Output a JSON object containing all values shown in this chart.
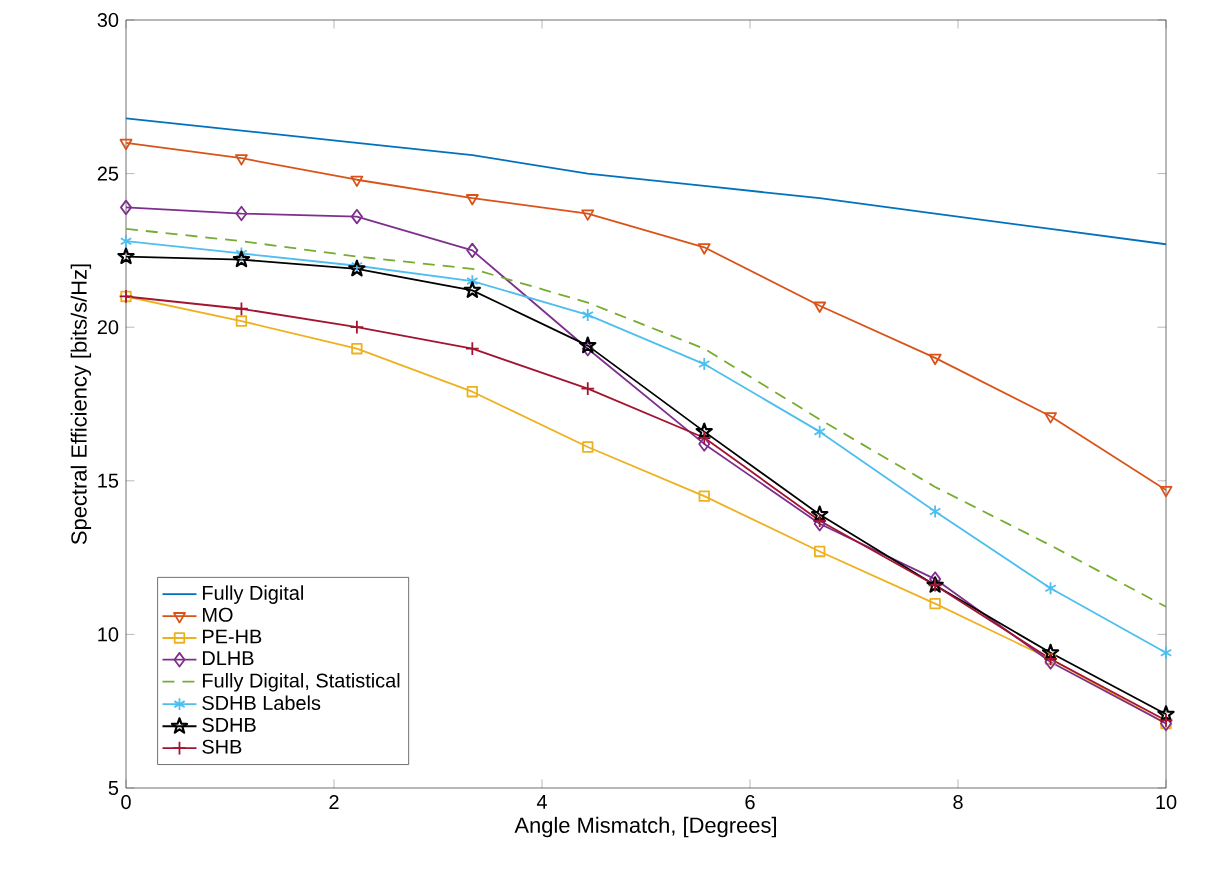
{
  "chart_data": {
    "type": "line",
    "xlabel": "Angle Mismatch, [Degrees]",
    "ylabel": "Spectral Efficiency [bits/s/Hz]",
    "x": [
      0,
      1.11,
      2.22,
      3.33,
      4.44,
      5.56,
      6.67,
      7.78,
      8.89,
      10
    ],
    "series": [
      {
        "name": "Fully Digital",
        "color": "#0072bd",
        "marker": "none",
        "line_style": "solid",
        "values": [
          26.8,
          26.4,
          26.0,
          25.6,
          25.0,
          24.6,
          24.2,
          23.7,
          23.2,
          22.7
        ]
      },
      {
        "name": "MO",
        "color": "#d95319",
        "marker": "triangle",
        "line_style": "solid",
        "values": [
          26.0,
          25.5,
          24.8,
          24.2,
          23.7,
          22.6,
          20.7,
          19.0,
          17.1,
          14.7
        ]
      },
      {
        "name": "PE-HB",
        "color": "#edb120",
        "marker": "square",
        "line_style": "solid",
        "values": [
          21.0,
          20.2,
          19.3,
          17.9,
          16.1,
          14.5,
          12.7,
          11.0,
          9.2,
          7.1
        ]
      },
      {
        "name": "DLHB",
        "color": "#7e2f8e",
        "marker": "diamond",
        "line_style": "solid",
        "values": [
          23.9,
          23.7,
          23.6,
          22.5,
          19.3,
          16.2,
          13.6,
          11.8,
          9.1,
          7.1
        ]
      },
      {
        "name": "Fully Digital, Statistical",
        "color": "#77ac30",
        "marker": "none",
        "line_style": "dashed",
        "values": [
          23.2,
          22.8,
          22.3,
          21.9,
          20.8,
          19.3,
          17.0,
          14.8,
          12.9,
          10.9
        ]
      },
      {
        "name": "SDHB Labels",
        "color": "#4dbeee",
        "marker": "cross",
        "line_style": "solid",
        "values": [
          22.8,
          22.4,
          22.0,
          21.5,
          20.4,
          18.8,
          16.6,
          14.0,
          11.5,
          9.4
        ]
      },
      {
        "name": "SDHB",
        "color": "#000000",
        "marker": "star",
        "line_style": "solid",
        "values": [
          22.3,
          22.2,
          21.9,
          21.2,
          19.4,
          16.6,
          13.9,
          11.6,
          9.4,
          7.4
        ]
      },
      {
        "name": "SHB",
        "color": "#a2142f",
        "marker": "cross",
        "line_style": "solid",
        "values": [
          21.0,
          20.6,
          20.0,
          19.3,
          18.0,
          16.4,
          13.7,
          11.6,
          9.2,
          7.2
        ]
      }
    ],
    "xlim": [
      0,
      10
    ],
    "ylim": [
      5,
      30
    ],
    "xticks": [
      0,
      2,
      4,
      6,
      8,
      10
    ],
    "yticks": [
      5,
      10,
      15,
      20,
      25,
      30
    ],
    "grid": false,
    "legend": "bottom left"
  }
}
